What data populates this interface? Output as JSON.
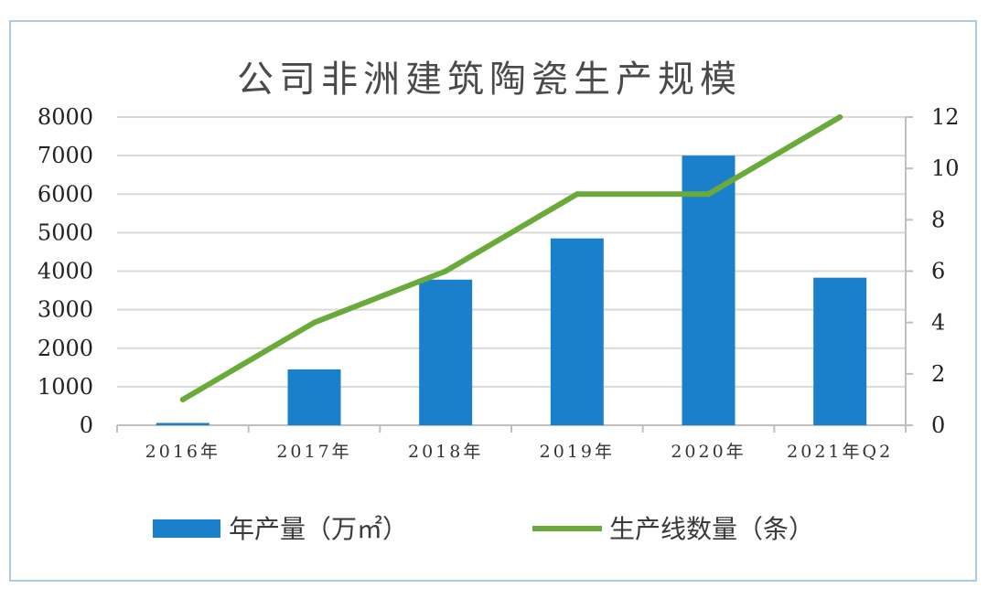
{
  "chart_data": {
    "type": "bar",
    "title": "公司非洲建筑陶瓷生产规模",
    "categories": [
      "2016年",
      "2017年",
      "2018年",
      "2019年",
      "2020年",
      "2021年Q2"
    ],
    "series": [
      {
        "name": "年产量（万㎡）",
        "type": "bar",
        "axis": "left",
        "color": "#1a80cc",
        "values": [
          60,
          1450,
          3780,
          4850,
          7000,
          3830
        ]
      },
      {
        "name": "生产线数量（条）",
        "type": "line",
        "axis": "right",
        "color": "#6aaa3a",
        "values": [
          1,
          4,
          6,
          9,
          9,
          12
        ]
      }
    ],
    "y_left": {
      "min": 0,
      "max": 8000,
      "ticks": [
        "0",
        "1000",
        "2000",
        "3000",
        "4000",
        "5000",
        "6000",
        "7000",
        "8000"
      ]
    },
    "y_right": {
      "min": 0,
      "max": 12,
      "ticks": [
        "0",
        "2",
        "4",
        "6",
        "8",
        "10",
        "12"
      ]
    },
    "grid": true,
    "legend_position": "bottom"
  }
}
